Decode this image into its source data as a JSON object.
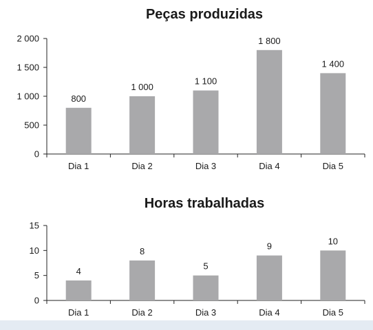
{
  "colors": {
    "bar": "#a9a9ab",
    "axis": "#222222",
    "background": "#ffffff",
    "frame": "#e4ebf3"
  },
  "chart_data": [
    {
      "type": "bar",
      "title": "Peças produzidas",
      "categories": [
        "Dia 1",
        "Dia 2",
        "Dia 3",
        "Dia 4",
        "Dia 5"
      ],
      "values": [
        800,
        1000,
        1100,
        1800,
        1400
      ],
      "value_labels": [
        "800",
        "1 000",
        "1 100",
        "1 800",
        "1 400"
      ],
      "yticks": [
        0,
        500,
        1000,
        1500,
        2000
      ],
      "ytick_labels": [
        "0",
        "500",
        "1 000",
        "1 500",
        "2 000"
      ],
      "ylim": [
        0,
        2000
      ],
      "grid": false,
      "legend": "none"
    },
    {
      "type": "bar",
      "title": "Horas trabalhadas",
      "categories": [
        "Dia 1",
        "Dia 2",
        "Dia 3",
        "Dia 4",
        "Dia 5"
      ],
      "values": [
        4,
        8,
        5,
        9,
        10
      ],
      "value_labels": [
        "4",
        "8",
        "5",
        "9",
        "10"
      ],
      "yticks": [
        0,
        5,
        10,
        15
      ],
      "ytick_labels": [
        "0",
        "5",
        "10",
        "15"
      ],
      "ylim": [
        0,
        15
      ],
      "grid": false,
      "legend": "none"
    }
  ]
}
